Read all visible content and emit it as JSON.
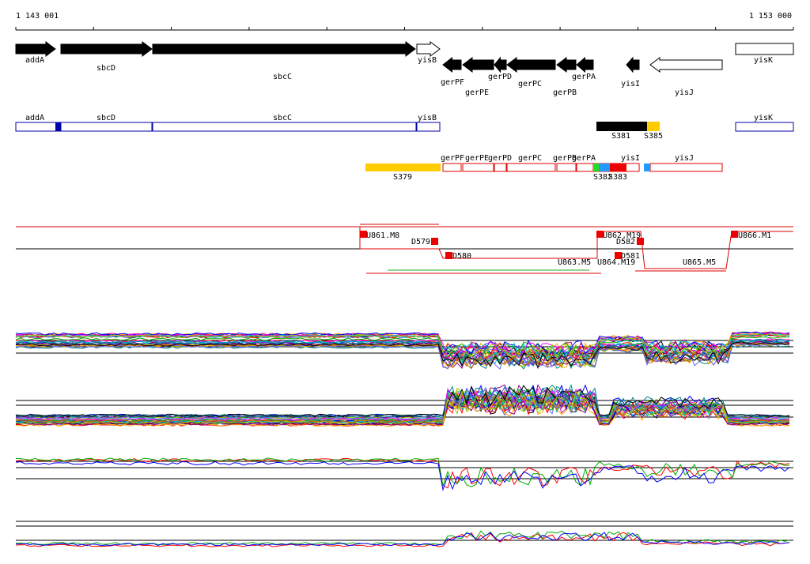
{
  "ruler": {
    "start": "1 143 001",
    "end": "1 153 000"
  },
  "genes": [
    "addA",
    "sbcD",
    "sbcC",
    "yisB",
    "gerPF",
    "gerPE",
    "gerPD",
    "gerPC",
    "gerPB",
    "gerPA",
    "yisI",
    "yisJ",
    "yisK"
  ],
  "operons": [
    "addA",
    "sbcD",
    "sbcC",
    "yisB",
    "yisK",
    "S381",
    "S385"
  ],
  "transcripts": [
    "gerPF",
    "gerPE",
    "gerPD",
    "gerPC",
    "gerPB",
    "gerPA",
    "yisI",
    "yisJ",
    "S379",
    "S382",
    "S383"
  ],
  "segments": [
    "U861.M8",
    "D579",
    "D580",
    "U862.M19",
    "D582",
    "D581",
    "U863.M5",
    "U864.M19",
    "U865.M5",
    "U866.M1"
  ]
}
